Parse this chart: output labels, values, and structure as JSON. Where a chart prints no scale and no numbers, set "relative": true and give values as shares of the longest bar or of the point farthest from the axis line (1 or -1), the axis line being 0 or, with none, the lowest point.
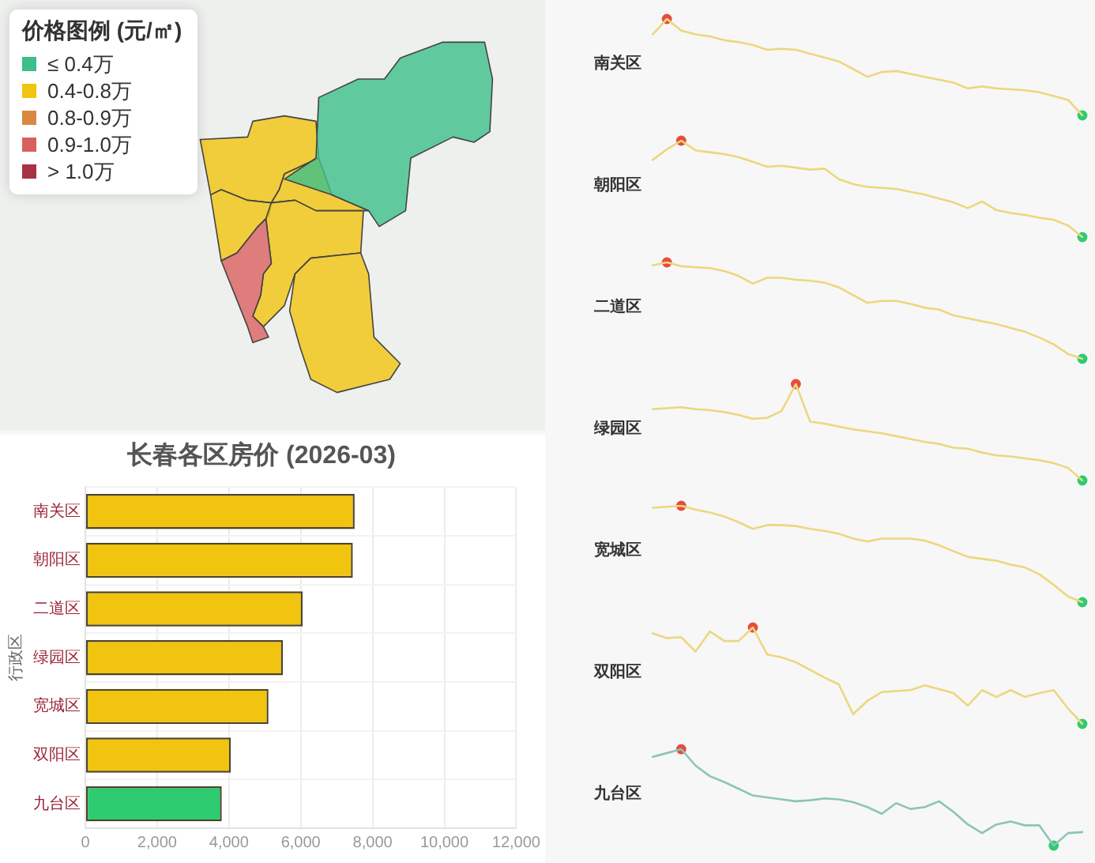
{
  "chart_data": [
    {
      "type": "other",
      "legend_title": "价格图例 (元/㎡)",
      "categories": [
        "≤ 0.4万",
        "0.4-0.8万",
        "0.8-0.9万",
        "0.9-1.0万",
        "> 1.0万"
      ],
      "colors": [
        "#3dbf8a",
        "#f1c40f",
        "#d8893f",
        "#d9605f",
        "#a83245"
      ]
    },
    {
      "type": "bar",
      "orientation": "horizontal",
      "title": "长春各区房价 (2026-03)",
      "ylabel": "行政区",
      "categories": [
        "南关区",
        "朝阳区",
        "二道区",
        "绿园区",
        "宽城区",
        "双阳区",
        "九台区"
      ],
      "values": [
        7500,
        7450,
        6050,
        5500,
        5100,
        4050,
        3800
      ],
      "colors": [
        "#f1c40f",
        "#f1c40f",
        "#f1c40f",
        "#f1c40f",
        "#f1c40f",
        "#f1c40f",
        "#2ecc71"
      ],
      "xlim": [
        0,
        12000
      ],
      "xticks": [
        0,
        {
          "value": 2000,
          "label": "2,000"
        },
        {
          "value": 4000,
          "label": "4,000"
        },
        {
          "value": 6000,
          "label": "6,000"
        },
        {
          "value": 8000,
          "label": "8,000"
        },
        {
          "value": 10000,
          "label": "10,000"
        },
        {
          "value": 12000,
          "label": "12,000"
        }
      ],
      "grid": true
    },
    {
      "type": "line",
      "title": "南关区",
      "relative": true,
      "marker": "none",
      "categories": [
        null,
        null,
        null,
        null,
        null,
        null,
        null,
        null,
        null,
        null,
        null,
        null,
        null,
        null,
        null,
        null,
        null,
        null,
        null,
        null,
        null,
        null,
        null,
        null,
        null,
        null,
        null,
        null,
        null,
        null,
        null
      ],
      "series": [
        {
          "color": "#ecd77f",
          "values": [
            0.84,
            1,
            0.88,
            0.84,
            0.82,
            0.78,
            0.76,
            0.73,
            0.68,
            0.69,
            0.68,
            0.64,
            0.6,
            0.56,
            0.48,
            0.4,
            0.45,
            0.46,
            0.43,
            0.4,
            0.37,
            0.34,
            0.28,
            0.3,
            0.28,
            0.27,
            0.26,
            0.24,
            0.2,
            0.16,
            0
          ]
        },
        {
          "marker": "circle",
          "color": "#e74c3c",
          "values": [
            null,
            1,
            null,
            null,
            null,
            null,
            null,
            null,
            null,
            null,
            null,
            null,
            null,
            null,
            null,
            null,
            null,
            null,
            null,
            null,
            null,
            null,
            null,
            null,
            null,
            null,
            null,
            null,
            null,
            null,
            null
          ]
        },
        {
          "marker": "circle",
          "color": "#2ecc71",
          "values": [
            null,
            null,
            null,
            null,
            null,
            null,
            null,
            null,
            null,
            null,
            null,
            null,
            null,
            null,
            null,
            null,
            null,
            null,
            null,
            null,
            null,
            null,
            null,
            null,
            null,
            null,
            null,
            null,
            null,
            null,
            0
          ]
        }
      ]
    },
    {
      "type": "line",
      "title": "朝阳区",
      "relative": true,
      "marker": "none",
      "categories": [
        null,
        null,
        null,
        null,
        null,
        null,
        null,
        null,
        null,
        null,
        null,
        null,
        null,
        null,
        null,
        null,
        null,
        null,
        null,
        null,
        null,
        null,
        null,
        null,
        null,
        null,
        null,
        null,
        null,
        null,
        null
      ],
      "series": [
        {
          "color": "#ecd77f",
          "values": [
            0.8,
            0.91,
            1,
            0.9,
            0.88,
            0.86,
            0.83,
            0.78,
            0.73,
            0.74,
            0.72,
            0.7,
            0.71,
            0.6,
            0.55,
            0.52,
            0.51,
            0.5,
            0.47,
            0.44,
            0.4,
            0.36,
            0.3,
            0.37,
            0.28,
            0.25,
            0.23,
            0.2,
            0.18,
            0.12,
            0
          ]
        },
        {
          "marker": "circle",
          "color": "#e74c3c",
          "values": [
            null,
            null,
            1,
            null,
            null,
            null,
            null,
            null,
            null,
            null,
            null,
            null,
            null,
            null,
            null,
            null,
            null,
            null,
            null,
            null,
            null,
            null,
            null,
            null,
            null,
            null,
            null,
            null,
            null,
            null,
            null
          ]
        },
        {
          "marker": "circle",
          "color": "#2ecc71",
          "values": [
            null,
            null,
            null,
            null,
            null,
            null,
            null,
            null,
            null,
            null,
            null,
            null,
            null,
            null,
            null,
            null,
            null,
            null,
            null,
            null,
            null,
            null,
            null,
            null,
            null,
            null,
            null,
            null,
            null,
            null,
            0
          ]
        }
      ]
    },
    {
      "type": "line",
      "title": "二道区",
      "relative": true,
      "marker": "none",
      "categories": [
        null,
        null,
        null,
        null,
        null,
        null,
        null,
        null,
        null,
        null,
        null,
        null,
        null,
        null,
        null,
        null,
        null,
        null,
        null,
        null,
        null,
        null,
        null,
        null,
        null,
        null,
        null,
        null,
        null,
        null,
        null
      ],
      "series": [
        {
          "color": "#ecd77f",
          "values": [
            0.97,
            1,
            0.96,
            0.95,
            0.94,
            0.91,
            0.86,
            0.78,
            0.84,
            0.84,
            0.82,
            0.81,
            0.79,
            0.74,
            0.66,
            0.58,
            0.6,
            0.6,
            0.57,
            0.53,
            0.51,
            0.45,
            0.42,
            0.39,
            0.36,
            0.32,
            0.28,
            0.22,
            0.15,
            0.05,
            0
          ]
        },
        {
          "marker": "circle",
          "color": "#e74c3c",
          "values": [
            null,
            1,
            null,
            null,
            null,
            null,
            null,
            null,
            null,
            null,
            null,
            null,
            null,
            null,
            null,
            null,
            null,
            null,
            null,
            null,
            null,
            null,
            null,
            null,
            null,
            null,
            null,
            null,
            null,
            null,
            null
          ]
        },
        {
          "marker": "circle",
          "color": "#2ecc71",
          "values": [
            null,
            null,
            null,
            null,
            null,
            null,
            null,
            null,
            null,
            null,
            null,
            null,
            null,
            null,
            null,
            null,
            null,
            null,
            null,
            null,
            null,
            null,
            null,
            null,
            null,
            null,
            null,
            null,
            null,
            null,
            0
          ]
        }
      ]
    },
    {
      "type": "line",
      "title": "绿园区",
      "relative": true,
      "marker": "none",
      "categories": [
        null,
        null,
        null,
        null,
        null,
        null,
        null,
        null,
        null,
        null,
        null,
        null,
        null,
        null,
        null,
        null,
        null,
        null,
        null,
        null,
        null,
        null,
        null,
        null,
        null,
        null,
        null,
        null,
        null,
        null,
        null
      ],
      "series": [
        {
          "color": "#ecd77f",
          "values": [
            0.74,
            0.75,
            0.76,
            0.74,
            0.73,
            0.71,
            0.68,
            0.64,
            0.65,
            0.72,
            1,
            0.61,
            0.59,
            0.56,
            0.53,
            0.51,
            0.49,
            0.46,
            0.43,
            0.4,
            0.38,
            0.34,
            0.33,
            0.29,
            0.26,
            0.25,
            0.23,
            0.21,
            0.18,
            0.13,
            0
          ]
        },
        {
          "marker": "circle",
          "color": "#e74c3c",
          "values": [
            null,
            null,
            null,
            null,
            null,
            null,
            null,
            null,
            null,
            null,
            1,
            null,
            null,
            null,
            null,
            null,
            null,
            null,
            null,
            null,
            null,
            null,
            null,
            null,
            null,
            null,
            null,
            null,
            null,
            null,
            null
          ]
        },
        {
          "marker": "circle",
          "color": "#2ecc71",
          "values": [
            null,
            null,
            null,
            null,
            null,
            null,
            null,
            null,
            null,
            null,
            null,
            null,
            null,
            null,
            null,
            null,
            null,
            null,
            null,
            null,
            null,
            null,
            null,
            null,
            null,
            null,
            null,
            null,
            null,
            null,
            0
          ]
        }
      ]
    },
    {
      "type": "line",
      "title": "宽城区",
      "relative": true,
      "marker": "none",
      "categories": [
        null,
        null,
        null,
        null,
        null,
        null,
        null,
        null,
        null,
        null,
        null,
        null,
        null,
        null,
        null,
        null,
        null,
        null,
        null,
        null,
        null,
        null,
        null,
        null,
        null,
        null,
        null,
        null,
        null,
        null,
        null
      ],
      "series": [
        {
          "color": "#ecd77f",
          "values": [
            0.98,
            0.99,
            1,
            0.96,
            0.93,
            0.89,
            0.83,
            0.76,
            0.8,
            0.8,
            0.79,
            0.76,
            0.74,
            0.71,
            0.66,
            0.63,
            0.66,
            0.66,
            0.66,
            0.64,
            0.59,
            0.53,
            0.47,
            0.45,
            0.43,
            0.39,
            0.36,
            0.29,
            0.18,
            0.06,
            0
          ]
        },
        {
          "marker": "circle",
          "color": "#e74c3c",
          "values": [
            null,
            null,
            1,
            null,
            null,
            null,
            null,
            null,
            null,
            null,
            null,
            null,
            null,
            null,
            null,
            null,
            null,
            null,
            null,
            null,
            null,
            null,
            null,
            null,
            null,
            null,
            null,
            null,
            null,
            null,
            null
          ]
        },
        {
          "marker": "circle",
          "color": "#2ecc71",
          "values": [
            null,
            null,
            null,
            null,
            null,
            null,
            null,
            null,
            null,
            null,
            null,
            null,
            null,
            null,
            null,
            null,
            null,
            null,
            null,
            null,
            null,
            null,
            null,
            null,
            null,
            null,
            null,
            null,
            null,
            null,
            0
          ]
        }
      ]
    },
    {
      "type": "line",
      "title": "双阳区",
      "relative": true,
      "marker": "none",
      "categories": [
        null,
        null,
        null,
        null,
        null,
        null,
        null,
        null,
        null,
        null,
        null,
        null,
        null,
        null,
        null,
        null,
        null,
        null,
        null,
        null,
        null,
        null,
        null,
        null,
        null,
        null,
        null,
        null,
        null,
        null,
        null
      ],
      "series": [
        {
          "color": "#ecd77f",
          "values": [
            0.94,
            0.89,
            0.9,
            0.75,
            0.96,
            0.86,
            0.86,
            1,
            0.72,
            0.69,
            0.64,
            0.56,
            0.48,
            0.41,
            0.1,
            0.24,
            0.33,
            0.34,
            0.35,
            0.4,
            0.36,
            0.32,
            0.19,
            0.35,
            0.28,
            0.35,
            0.28,
            0.32,
            0.35,
            0.16,
            0
          ]
        },
        {
          "marker": "circle",
          "color": "#e74c3c",
          "values": [
            null,
            null,
            null,
            null,
            null,
            null,
            null,
            1,
            null,
            null,
            null,
            null,
            null,
            null,
            null,
            null,
            null,
            null,
            null,
            null,
            null,
            null,
            null,
            null,
            null,
            null,
            null,
            null,
            null,
            null,
            null
          ]
        },
        {
          "marker": "circle",
          "color": "#2ecc71",
          "values": [
            null,
            null,
            null,
            null,
            null,
            null,
            null,
            null,
            null,
            null,
            null,
            null,
            null,
            null,
            null,
            null,
            null,
            null,
            null,
            null,
            null,
            null,
            null,
            null,
            null,
            null,
            null,
            null,
            null,
            null,
            0
          ]
        }
      ]
    },
    {
      "type": "line",
      "title": "九台区",
      "relative": true,
      "marker": "none",
      "categories": [
        null,
        null,
        null,
        null,
        null,
        null,
        null,
        null,
        null,
        null,
        null,
        null,
        null,
        null,
        null,
        null,
        null,
        null,
        null,
        null,
        null,
        null,
        null,
        null,
        null,
        null,
        null,
        null,
        null,
        null,
        null
      ],
      "series": [
        {
          "color": "#8cc5b5",
          "values": [
            0.92,
            0.96,
            1,
            0.83,
            0.72,
            0.66,
            0.59,
            0.52,
            0.5,
            0.48,
            0.46,
            0.47,
            0.49,
            0.48,
            0.45,
            0.4,
            0.33,
            0.44,
            0.38,
            0.4,
            0.46,
            0.35,
            0.22,
            0.13,
            0.22,
            0.25,
            0.21,
            0.21,
            0,
            0.13,
            0.14
          ]
        },
        {
          "marker": "circle",
          "color": "#e74c3c",
          "values": [
            null,
            null,
            1,
            null,
            null,
            null,
            null,
            null,
            null,
            null,
            null,
            null,
            null,
            null,
            null,
            null,
            null,
            null,
            null,
            null,
            null,
            null,
            null,
            null,
            null,
            null,
            null,
            null,
            null,
            null,
            null
          ]
        },
        {
          "marker": "circle",
          "color": "#2ecc71",
          "values": [
            null,
            null,
            null,
            null,
            null,
            null,
            null,
            null,
            null,
            null,
            null,
            null,
            null,
            null,
            null,
            null,
            null,
            null,
            null,
            null,
            null,
            null,
            null,
            null,
            null,
            null,
            null,
            null,
            0,
            null,
            null
          ]
        }
      ]
    }
  ]
}
